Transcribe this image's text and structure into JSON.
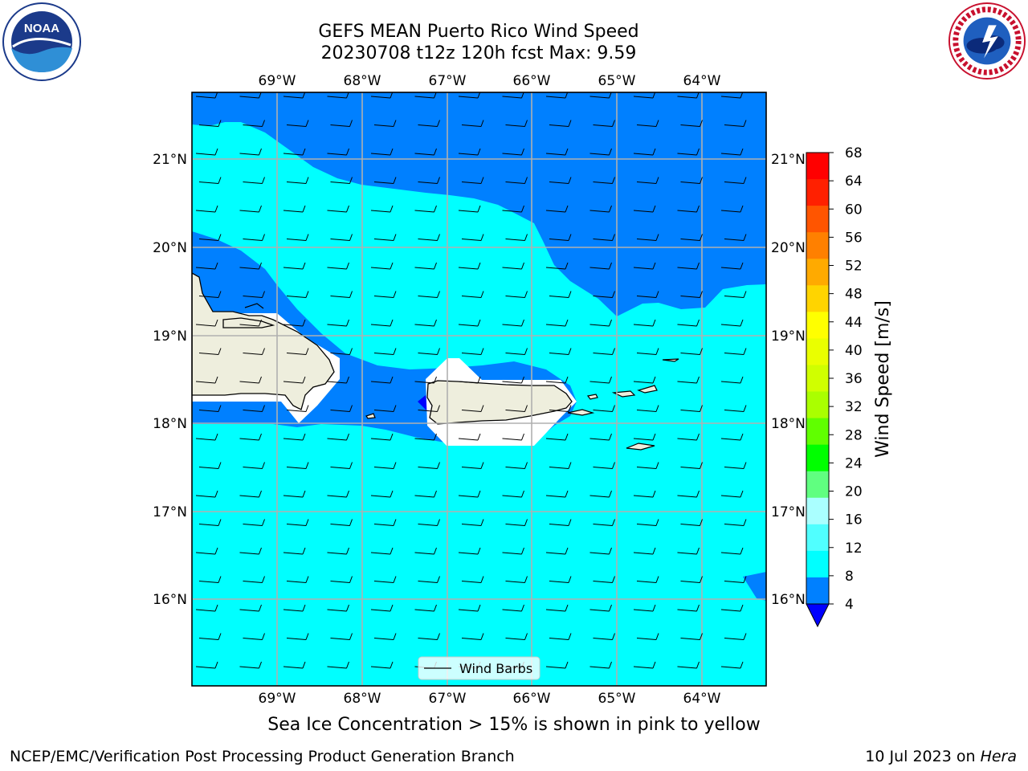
{
  "title": {
    "line1": "GEFS MEAN Puerto Rico Wind Speed",
    "line2": "20230708 t12z 120h fcst   Max: 9.59"
  },
  "logos": {
    "left": "noaa-logo",
    "right": "nws-logo"
  },
  "map": {
    "lon_ticks": [
      "69°W",
      "68°W",
      "67°W",
      "66°W",
      "65°W",
      "64°W"
    ],
    "lat_ticks": [
      "21°N",
      "20°N",
      "19°N",
      "18°N",
      "17°N",
      "16°N"
    ],
    "legend_label": "Wind Barbs",
    "land_color": "#eeeedd",
    "ocean_fill_low": "#00ffff",
    "ocean_fill_mid": "#0080ff"
  },
  "colorbar": {
    "label": "Wind Speed [m/s]",
    "levels": [
      "68",
      "64",
      "60",
      "56",
      "52",
      "48",
      "44",
      "40",
      "36",
      "32",
      "28",
      "24",
      "20",
      "16",
      "12",
      "8",
      "4"
    ],
    "colors": [
      "#ff0000",
      "#ff2000",
      "#ff5500",
      "#ff8000",
      "#ffaa00",
      "#ffd400",
      "#ffff00",
      "#eaff00",
      "#d0ff00",
      "#aaff00",
      "#60ff00",
      "#00ff00",
      "#60ff80",
      "#aaffff",
      "#50ffff",
      "#00ffff",
      "#0080ff"
    ],
    "under_color": "#0000ff"
  },
  "subcaption": "Sea Ice Concentration > 15% is shown in pink to yellow",
  "footer": {
    "left": "NCEP/EMC/Verification Post Processing Product Generation Branch",
    "right_prefix": "10 Jul 2023 on ",
    "right_host": "Hera"
  }
}
